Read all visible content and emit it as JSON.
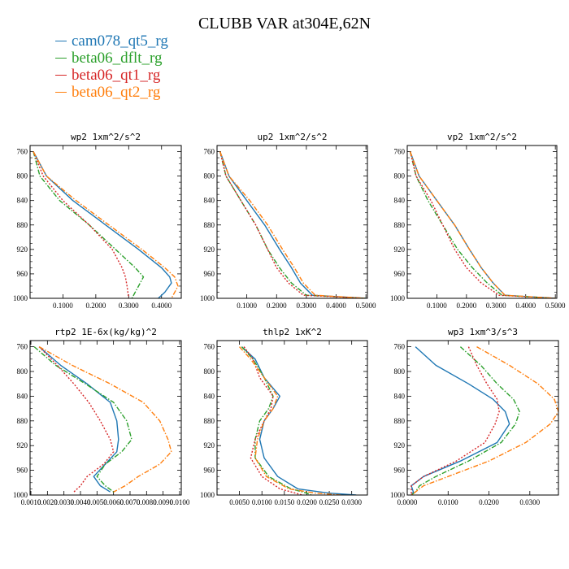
{
  "title": "CLUBB VAR at304E,62N",
  "colors": {
    "cam078_qt5_rg": "#1f77b4",
    "beta06_dflt_rg": "#2ca02c",
    "beta06_qt1_rg": "#d62728",
    "beta06_qt2_rg": "#ff7f0e"
  },
  "legend": [
    {
      "name": "cam078_qt5_rg",
      "color": "#1f77b4",
      "dash": "solid"
    },
    {
      "name": "beta06_dflt_rg",
      "color": "#2ca02c",
      "dash": "dash-dot"
    },
    {
      "name": "beta06_qt1_rg",
      "color": "#d62728",
      "dash": "dotted"
    },
    {
      "name": "beta06_qt2_rg",
      "color": "#ff7f0e",
      "dash": "dash-dot"
    }
  ],
  "chart_data": [
    {
      "type": "line",
      "title": "wp2  1xm^2/s^2",
      "ylim": [
        1000,
        750
      ],
      "xlim": [
        0,
        0.46
      ],
      "yticks": [
        760,
        800,
        840,
        880,
        920,
        960,
        1000
      ],
      "xticks": [
        0.1,
        0.2,
        0.3,
        0.4
      ],
      "xtick_labels": [
        "0.1000",
        "0.2000",
        "0.3000",
        "0.4000"
      ],
      "series": [
        {
          "name": "cam078_qt5_rg",
          "x": [
            0.01,
            0.05,
            0.13,
            0.23,
            0.33,
            0.4,
            0.425,
            0.43,
            0.41,
            0.39
          ],
          "y": [
            760,
            800,
            840,
            880,
            920,
            950,
            965,
            975,
            990,
            1000
          ]
        },
        {
          "name": "beta06_dflt_rg",
          "x": [
            0.01,
            0.03,
            0.09,
            0.18,
            0.26,
            0.32,
            0.345,
            0.33,
            0.31
          ],
          "y": [
            760,
            800,
            840,
            880,
            920,
            950,
            965,
            980,
            1000
          ]
        },
        {
          "name": "beta06_qt1_rg",
          "x": [
            0.01,
            0.04,
            0.1,
            0.18,
            0.25,
            0.28,
            0.29,
            0.295,
            0.3
          ],
          "y": [
            760,
            800,
            840,
            880,
            920,
            950,
            965,
            980,
            1000
          ]
        },
        {
          "name": "beta06_qt2_rg",
          "x": [
            0.01,
            0.05,
            0.14,
            0.24,
            0.34,
            0.41,
            0.44,
            0.45,
            0.43
          ],
          "y": [
            760,
            800,
            840,
            880,
            920,
            950,
            965,
            980,
            1000
          ]
        }
      ]
    },
    {
      "type": "line",
      "title": "up2  1xm^2/s^2",
      "ylim": [
        1000,
        750
      ],
      "xlim": [
        0,
        0.505
      ],
      "yticks": [
        760,
        800,
        840,
        880,
        920,
        960,
        1000
      ],
      "xticks": [
        0.1,
        0.2,
        0.3,
        0.4,
        0.5
      ],
      "xtick_labels": [
        "0.1000",
        "0.2000",
        "0.3000",
        "0.4000",
        "0.5000"
      ],
      "series": [
        {
          "name": "cam078_qt5_rg",
          "x": [
            0.01,
            0.04,
            0.1,
            0.16,
            0.21,
            0.25,
            0.28,
            0.32,
            0.5
          ],
          "y": [
            760,
            800,
            840,
            880,
            920,
            950,
            975,
            995,
            1000
          ]
        },
        {
          "name": "beta06_dflt_rg",
          "x": [
            0.01,
            0.03,
            0.08,
            0.13,
            0.17,
            0.21,
            0.25,
            0.3,
            0.5
          ],
          "y": [
            760,
            800,
            840,
            880,
            920,
            950,
            975,
            995,
            1000
          ]
        },
        {
          "name": "beta06_qt1_rg",
          "x": [
            0.01,
            0.03,
            0.08,
            0.13,
            0.17,
            0.2,
            0.24,
            0.29,
            0.5
          ],
          "y": [
            760,
            800,
            840,
            880,
            920,
            950,
            975,
            995,
            1000
          ]
        },
        {
          "name": "beta06_qt2_rg",
          "x": [
            0.01,
            0.04,
            0.11,
            0.17,
            0.22,
            0.26,
            0.29,
            0.33,
            0.5
          ],
          "y": [
            760,
            800,
            840,
            880,
            920,
            950,
            975,
            995,
            1000
          ]
        }
      ]
    },
    {
      "type": "line",
      "title": "vp2  1xm^2/s^2",
      "ylim": [
        1000,
        750
      ],
      "xlim": [
        0,
        0.505
      ],
      "yticks": [
        760,
        800,
        840,
        880,
        920,
        960,
        1000
      ],
      "xticks": [
        0.1,
        0.2,
        0.3,
        0.4,
        0.5
      ],
      "xtick_labels": [
        "0.1000",
        "0.2000",
        "0.3000",
        "0.4000",
        "0.5000"
      ],
      "series": [
        {
          "name": "cam078_qt5_rg",
          "x": [
            0.01,
            0.04,
            0.1,
            0.16,
            0.21,
            0.25,
            0.29,
            0.33,
            0.5
          ],
          "y": [
            760,
            800,
            840,
            880,
            920,
            950,
            975,
            995,
            1000
          ]
        },
        {
          "name": "beta06_dflt_rg",
          "x": [
            0.01,
            0.03,
            0.07,
            0.12,
            0.17,
            0.22,
            0.27,
            0.32,
            0.5
          ],
          "y": [
            760,
            800,
            840,
            880,
            920,
            950,
            975,
            995,
            1000
          ]
        },
        {
          "name": "beta06_qt1_rg",
          "x": [
            0.01,
            0.03,
            0.08,
            0.12,
            0.16,
            0.2,
            0.25,
            0.31,
            0.5
          ],
          "y": [
            760,
            800,
            840,
            880,
            920,
            950,
            975,
            995,
            1000
          ]
        },
        {
          "name": "beta06_qt2_rg",
          "x": [
            0.01,
            0.04,
            0.1,
            0.16,
            0.21,
            0.25,
            0.29,
            0.33,
            0.5
          ],
          "y": [
            760,
            800,
            840,
            880,
            920,
            950,
            975,
            995,
            1000
          ]
        }
      ]
    },
    {
      "type": "line",
      "title": "rtp2  1E-6x(kg/kg)^2",
      "ylim": [
        1000,
        750
      ],
      "xlim": [
        0.00095,
        0.0101
      ],
      "yticks": [
        760,
        800,
        840,
        880,
        920,
        960,
        1000
      ],
      "xticks": [
        0.001,
        0.002,
        0.003,
        0.004,
        0.005,
        0.006,
        0.007,
        0.008,
        0.009,
        0.01
      ],
      "xtick_labels": [
        "0.0010",
        "0.0020",
        "0.0030",
        "0.0040",
        "0.0050",
        "0.0060",
        "0.0070",
        "0.0080",
        "0.0090",
        "0.0100"
      ],
      "series": [
        {
          "name": "cam078_qt5_rg",
          "x": [
            0.0015,
            0.0028,
            0.0044,
            0.0058,
            0.0062,
            0.0063,
            0.0062,
            0.0055,
            0.0048,
            0.0052,
            0.0058
          ],
          "y": [
            760,
            790,
            820,
            850,
            880,
            910,
            930,
            950,
            970,
            985,
            995
          ]
        },
        {
          "name": "beta06_dflt_rg",
          "x": [
            0.0012,
            0.0025,
            0.0043,
            0.006,
            0.0068,
            0.0071,
            0.0065,
            0.0055,
            0.005,
            0.0055,
            0.006
          ],
          "y": [
            760,
            790,
            820,
            850,
            880,
            910,
            930,
            950,
            970,
            985,
            995
          ]
        },
        {
          "name": "beta06_qt1_rg",
          "x": [
            0.0015,
            0.0026,
            0.0036,
            0.0045,
            0.0052,
            0.0058,
            0.006,
            0.0054,
            0.0044,
            0.004,
            0.0036
          ],
          "y": [
            760,
            790,
            820,
            850,
            880,
            910,
            930,
            950,
            970,
            985,
            995
          ]
        },
        {
          "name": "beta06_qt2_rg",
          "x": [
            0.0015,
            0.0035,
            0.0058,
            0.0078,
            0.0088,
            0.0093,
            0.0095,
            0.0088,
            0.0075,
            0.0067,
            0.006
          ],
          "y": [
            760,
            790,
            820,
            850,
            880,
            910,
            930,
            950,
            970,
            985,
            995
          ]
        }
      ]
    },
    {
      "type": "line",
      "title": "thlp2  1xK^2",
      "ylim": [
        1000,
        750
      ],
      "xlim": [
        0,
        0.0335
      ],
      "yticks": [
        760,
        800,
        840,
        880,
        920,
        960,
        1000
      ],
      "xticks": [
        0.005,
        0.01,
        0.015,
        0.02,
        0.025,
        0.03
      ],
      "xtick_labels": [
        "0.0050",
        "0.0100",
        "0.0150",
        "0.0200",
        "0.0250",
        "0.0300"
      ],
      "series": [
        {
          "name": "cam078_qt5_rg",
          "x": [
            0.0055,
            0.0085,
            0.0105,
            0.014,
            0.0125,
            0.0105,
            0.0095,
            0.0105,
            0.0135,
            0.018,
            0.025,
            0.031
          ],
          "y": [
            760,
            780,
            810,
            840,
            860,
            880,
            910,
            940,
            970,
            990,
            997,
            1000
          ]
        },
        {
          "name": "beta06_dflt_rg",
          "x": [
            0.0055,
            0.008,
            0.0105,
            0.0125,
            0.0115,
            0.0095,
            0.0085,
            0.0085,
            0.0115,
            0.0165,
            0.02,
            0.021
          ],
          "y": [
            760,
            780,
            810,
            840,
            860,
            880,
            910,
            940,
            970,
            990,
            997,
            1000
          ]
        },
        {
          "name": "beta06_qt1_rg",
          "x": [
            0.006,
            0.008,
            0.0095,
            0.0125,
            0.012,
            0.0105,
            0.0085,
            0.0075,
            0.01,
            0.014,
            0.0175,
            0.019
          ],
          "y": [
            760,
            780,
            810,
            840,
            860,
            880,
            910,
            940,
            970,
            990,
            997,
            1000
          ]
        },
        {
          "name": "beta06_qt2_rg",
          "x": [
            0.005,
            0.0075,
            0.0105,
            0.0135,
            0.0125,
            0.0105,
            0.009,
            0.0085,
            0.011,
            0.016,
            0.022,
            0.0275
          ],
          "y": [
            760,
            780,
            810,
            840,
            860,
            880,
            910,
            940,
            970,
            990,
            997,
            1000
          ]
        }
      ]
    },
    {
      "type": "line",
      "title": "wp3  1xm^3/s^3",
      "ylim": [
        1000,
        750
      ],
      "xlim": [
        0,
        0.037
      ],
      "yticks": [
        760,
        800,
        840,
        880,
        920,
        960,
        1000
      ],
      "xticks": [
        0,
        0.01,
        0.02,
        0.03
      ],
      "xtick_labels": [
        "0.0000",
        "0.0100",
        "0.0200",
        "0.0300"
      ],
      "series": [
        {
          "name": "cam078_qt5_rg",
          "x": [
            0.002,
            0.007,
            0.015,
            0.021,
            0.024,
            0.025,
            0.022,
            0.013,
            0.004,
            0.001,
            0.0015,
            0.001
          ],
          "y": [
            760,
            790,
            820,
            845,
            865,
            885,
            915,
            945,
            970,
            985,
            995,
            1000
          ]
        },
        {
          "name": "beta06_dflt_rg",
          "x": [
            0.013,
            0.018,
            0.022,
            0.026,
            0.0275,
            0.0265,
            0.023,
            0.015,
            0.007,
            0.003,
            0.002,
            0.001
          ],
          "y": [
            760,
            790,
            820,
            845,
            865,
            885,
            915,
            945,
            970,
            985,
            995,
            1000
          ]
        },
        {
          "name": "beta06_qt1_rg",
          "x": [
            0.015,
            0.017,
            0.0195,
            0.022,
            0.0225,
            0.0215,
            0.019,
            0.012,
            0.004,
            0.001,
            0.001,
            0.001
          ],
          "y": [
            760,
            790,
            820,
            845,
            865,
            885,
            915,
            945,
            970,
            985,
            995,
            1000
          ]
        },
        {
          "name": "beta06_qt2_rg",
          "x": [
            0.017,
            0.025,
            0.032,
            0.036,
            0.037,
            0.035,
            0.029,
            0.02,
            0.01,
            0.004,
            0.002,
            0.001
          ],
          "y": [
            760,
            790,
            820,
            845,
            865,
            885,
            915,
            945,
            970,
            985,
            995,
            1000
          ]
        }
      ]
    }
  ]
}
